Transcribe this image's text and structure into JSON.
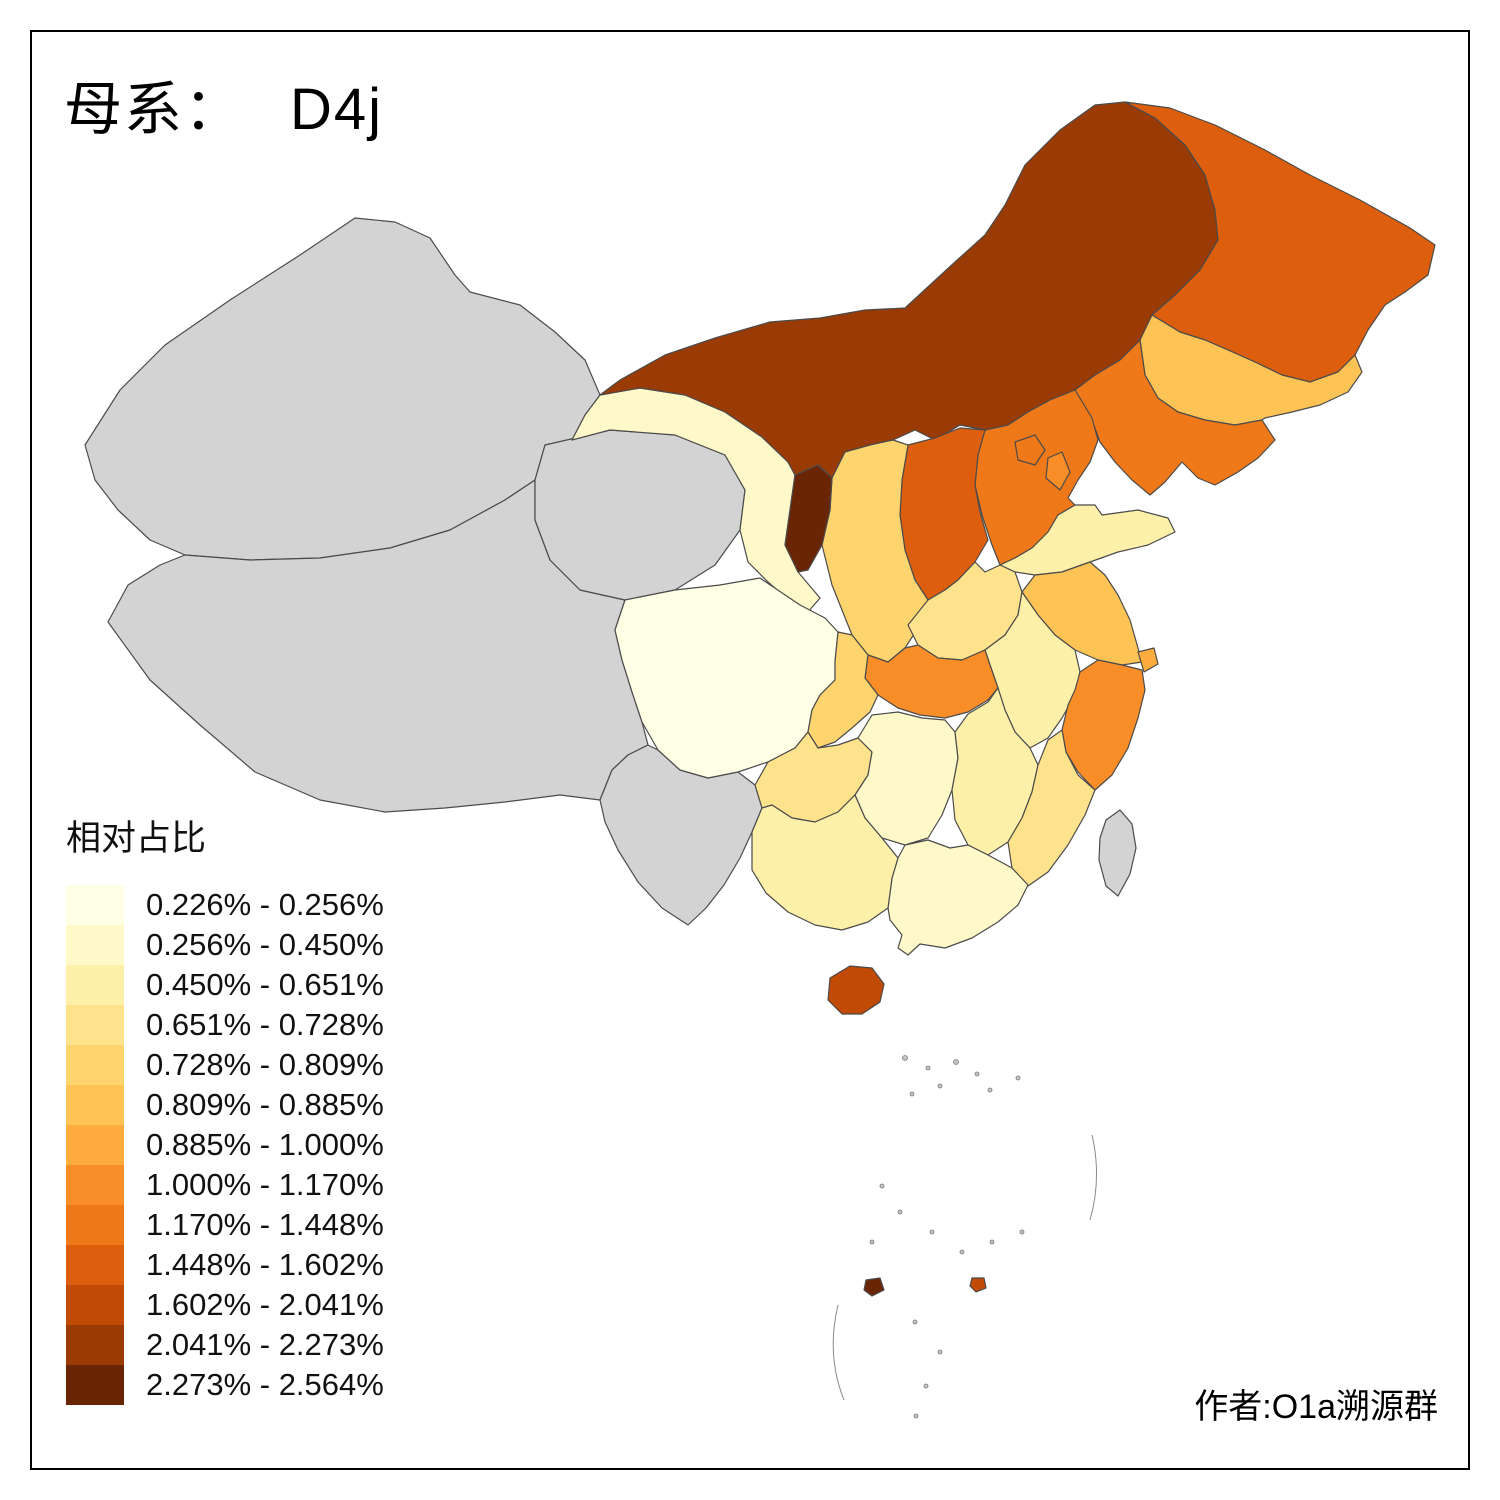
{
  "title": {
    "prefix": "母系：",
    "value": "D4j"
  },
  "legend": {
    "title": "相对占比",
    "items": [
      {
        "label": "0.226% - 0.256%",
        "color": "#FFFFE5"
      },
      {
        "label": "0.256% - 0.450%",
        "color": "#FFF8C8"
      },
      {
        "label": "0.450% - 0.651%",
        "color": "#FEF0A8"
      },
      {
        "label": "0.651% - 0.728%",
        "color": "#FEE38C"
      },
      {
        "label": "0.728% - 0.809%",
        "color": "#FED46F"
      },
      {
        "label": "0.809% - 0.885%",
        "color": "#FEC355"
      },
      {
        "label": "0.885% - 1.000%",
        "color": "#FEAC3D"
      },
      {
        "label": "1.000% - 1.170%",
        "color": "#F98E28"
      },
      {
        "label": "1.170% - 1.448%",
        "color": "#EF7818"
      },
      {
        "label": "1.448% - 1.602%",
        "color": "#DD5F0D"
      },
      {
        "label": "1.602% - 2.041%",
        "color": "#C14A05"
      },
      {
        "label": "2.041% - 2.273%",
        "color": "#9A3A04"
      },
      {
        "label": "2.273% - 2.564%",
        "color": "#6A2505"
      }
    ]
  },
  "attribution": "作者:O1a溯源群",
  "map": {
    "no_data_color": "#D3D3D3",
    "border_color": "#4B4B4B",
    "frame_color": "#000000",
    "provinces": [
      {
        "id": "xinjiang",
        "class": 0
      },
      {
        "id": "tibet",
        "class": 0
      },
      {
        "id": "qinghai",
        "class": 0
      },
      {
        "id": "yunnan",
        "class": 0
      },
      {
        "id": "taiwan",
        "class": 0
      },
      {
        "id": "gansu",
        "class": 2
      },
      {
        "id": "inner-mongolia",
        "class": 12
      },
      {
        "id": "ningxia",
        "class": 13
      },
      {
        "id": "heilongjiang",
        "class": 10
      },
      {
        "id": "jilin",
        "class": 6
      },
      {
        "id": "liaoning",
        "class": 9
      },
      {
        "id": "hebei",
        "class": 9
      },
      {
        "id": "beijing",
        "class": 9
      },
      {
        "id": "tianjin",
        "class": 8
      },
      {
        "id": "shanxi",
        "class": 10
      },
      {
        "id": "shaanxi",
        "class": 5
      },
      {
        "id": "shandong",
        "class": 3
      },
      {
        "id": "henan",
        "class": 4
      },
      {
        "id": "jiangsu",
        "class": 6
      },
      {
        "id": "shanghai",
        "class": 7
      },
      {
        "id": "anhui",
        "class": 3
      },
      {
        "id": "hubei",
        "class": 8
      },
      {
        "id": "chongqing",
        "class": 5
      },
      {
        "id": "sichuan",
        "class": 1
      },
      {
        "id": "guizhou",
        "class": 4
      },
      {
        "id": "hunan",
        "class": 2
      },
      {
        "id": "jiangxi",
        "class": 3
      },
      {
        "id": "zhejiang",
        "class": 8
      },
      {
        "id": "fujian",
        "class": 4
      },
      {
        "id": "guangdong",
        "class": 2
      },
      {
        "id": "guangxi",
        "class": 3
      },
      {
        "id": "hainan",
        "class": 11
      },
      {
        "id": "islet-west",
        "class": 13
      },
      {
        "id": "islet-east",
        "class": 11
      }
    ]
  }
}
